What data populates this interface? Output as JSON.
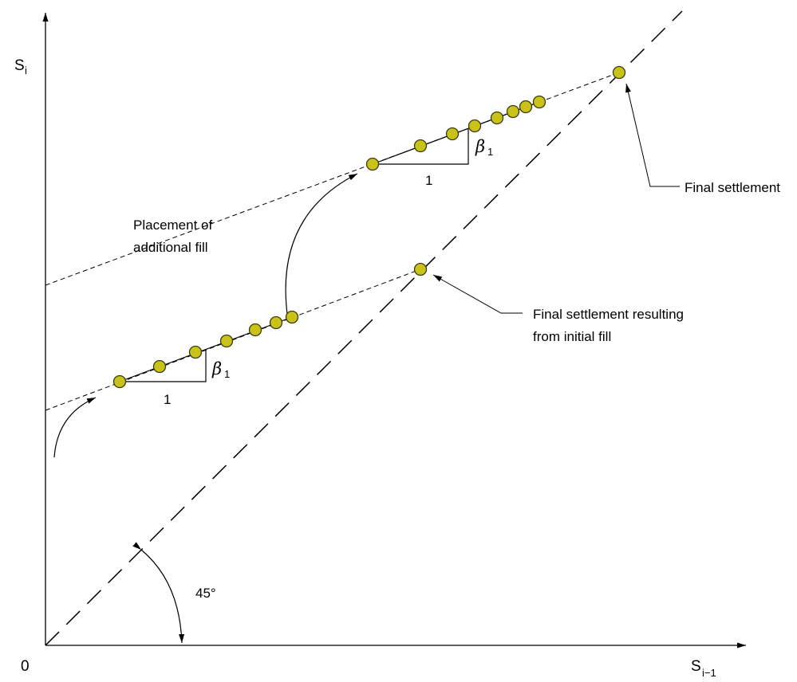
{
  "axes": {
    "y_label": "S",
    "y_sub": "i",
    "x_label": "S",
    "x_sub": "i−1",
    "origin": "0"
  },
  "annotations": {
    "placement_line1": "Placement of",
    "placement_line2": "additional fill",
    "final_settlement": "Final settlement",
    "final_initial_line1": "Final settlement resulting",
    "final_initial_line2": "from   initial fill",
    "angle": "45°",
    "run_lower": "1",
    "run_upper": "1",
    "slope_symbol": "β",
    "slope_sub": "1"
  },
  "colors": {
    "point_fill": "#c8c21a",
    "point_stroke": "#3a3a10",
    "line": "#000000"
  }
}
